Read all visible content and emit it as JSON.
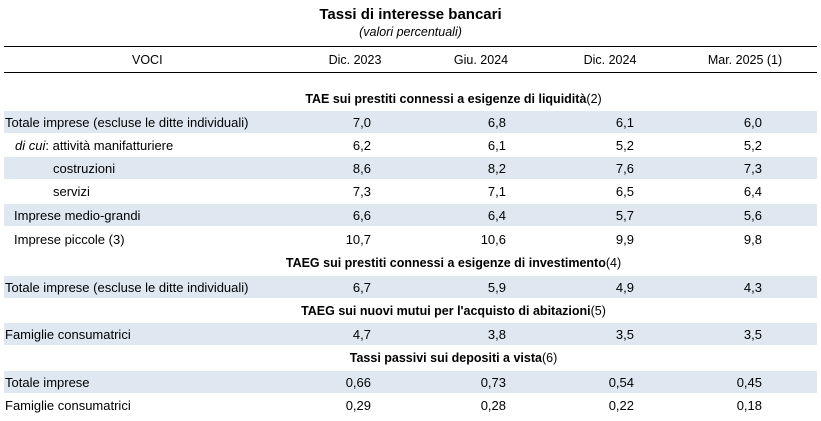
{
  "title": "Tassi di interesse bancari",
  "subtitle": "(valori percentuali)",
  "header": {
    "voci": "VOCI",
    "cols": [
      "Dic. 2023",
      "Giu. 2024",
      "Dic. 2024",
      "Mar. 2025 (1)"
    ]
  },
  "sections": [
    {
      "title": "TAE sui prestiti connessi a esigenze di liquidità",
      "note": " (2)",
      "rows": [
        {
          "label": "Totale imprese (escluse le ditte individuali)",
          "values": [
            "7,0",
            "6,8",
            "6,1",
            "6,0"
          ]
        },
        {
          "label_italic": "di cui",
          "label": ": attività manifatturiere",
          "values": [
            "6,2",
            "6,1",
            "5,2",
            "5,2"
          ]
        },
        {
          "label": "costruzioni",
          "values": [
            "8,6",
            "8,2",
            "7,6",
            "7,3"
          ]
        },
        {
          "label": "servizi",
          "values": [
            "7,3",
            "7,1",
            "6,5",
            "6,4"
          ]
        },
        {
          "label": "Imprese medio-grandi",
          "values": [
            "6,6",
            "6,4",
            "5,7",
            "5,6"
          ]
        },
        {
          "label": "Imprese piccole (3)",
          "values": [
            "10,7",
            "10,6",
            "9,9",
            "9,8"
          ]
        }
      ]
    },
    {
      "title": "TAEG sui prestiti connessi a esigenze di investimento",
      "note": " (4)",
      "rows": [
        {
          "label": "Totale imprese (escluse le ditte individuali)",
          "values": [
            "6,7",
            "5,9",
            "4,9",
            "4,3"
          ]
        }
      ]
    },
    {
      "title": "TAEG sui nuovi mutui per l'acquisto di abitazioni",
      "note": " (5)",
      "rows": [
        {
          "label": "Famiglie consumatrici",
          "values": [
            "4,7",
            "3,8",
            "3,5",
            "3,5"
          ]
        }
      ]
    },
    {
      "title": "Tassi passivi sui depositi a vista",
      "note": " (6)",
      "rows": [
        {
          "label": "Totale imprese",
          "values": [
            "0,66",
            "0,73",
            "0,54",
            "0,45"
          ]
        },
        {
          "label": "Famiglie consumatrici",
          "values": [
            "0,29",
            "0,28",
            "0,22",
            "0,18"
          ]
        }
      ]
    }
  ],
  "colors": {
    "shade": "#dfe8f1",
    "rule": "#000000"
  }
}
